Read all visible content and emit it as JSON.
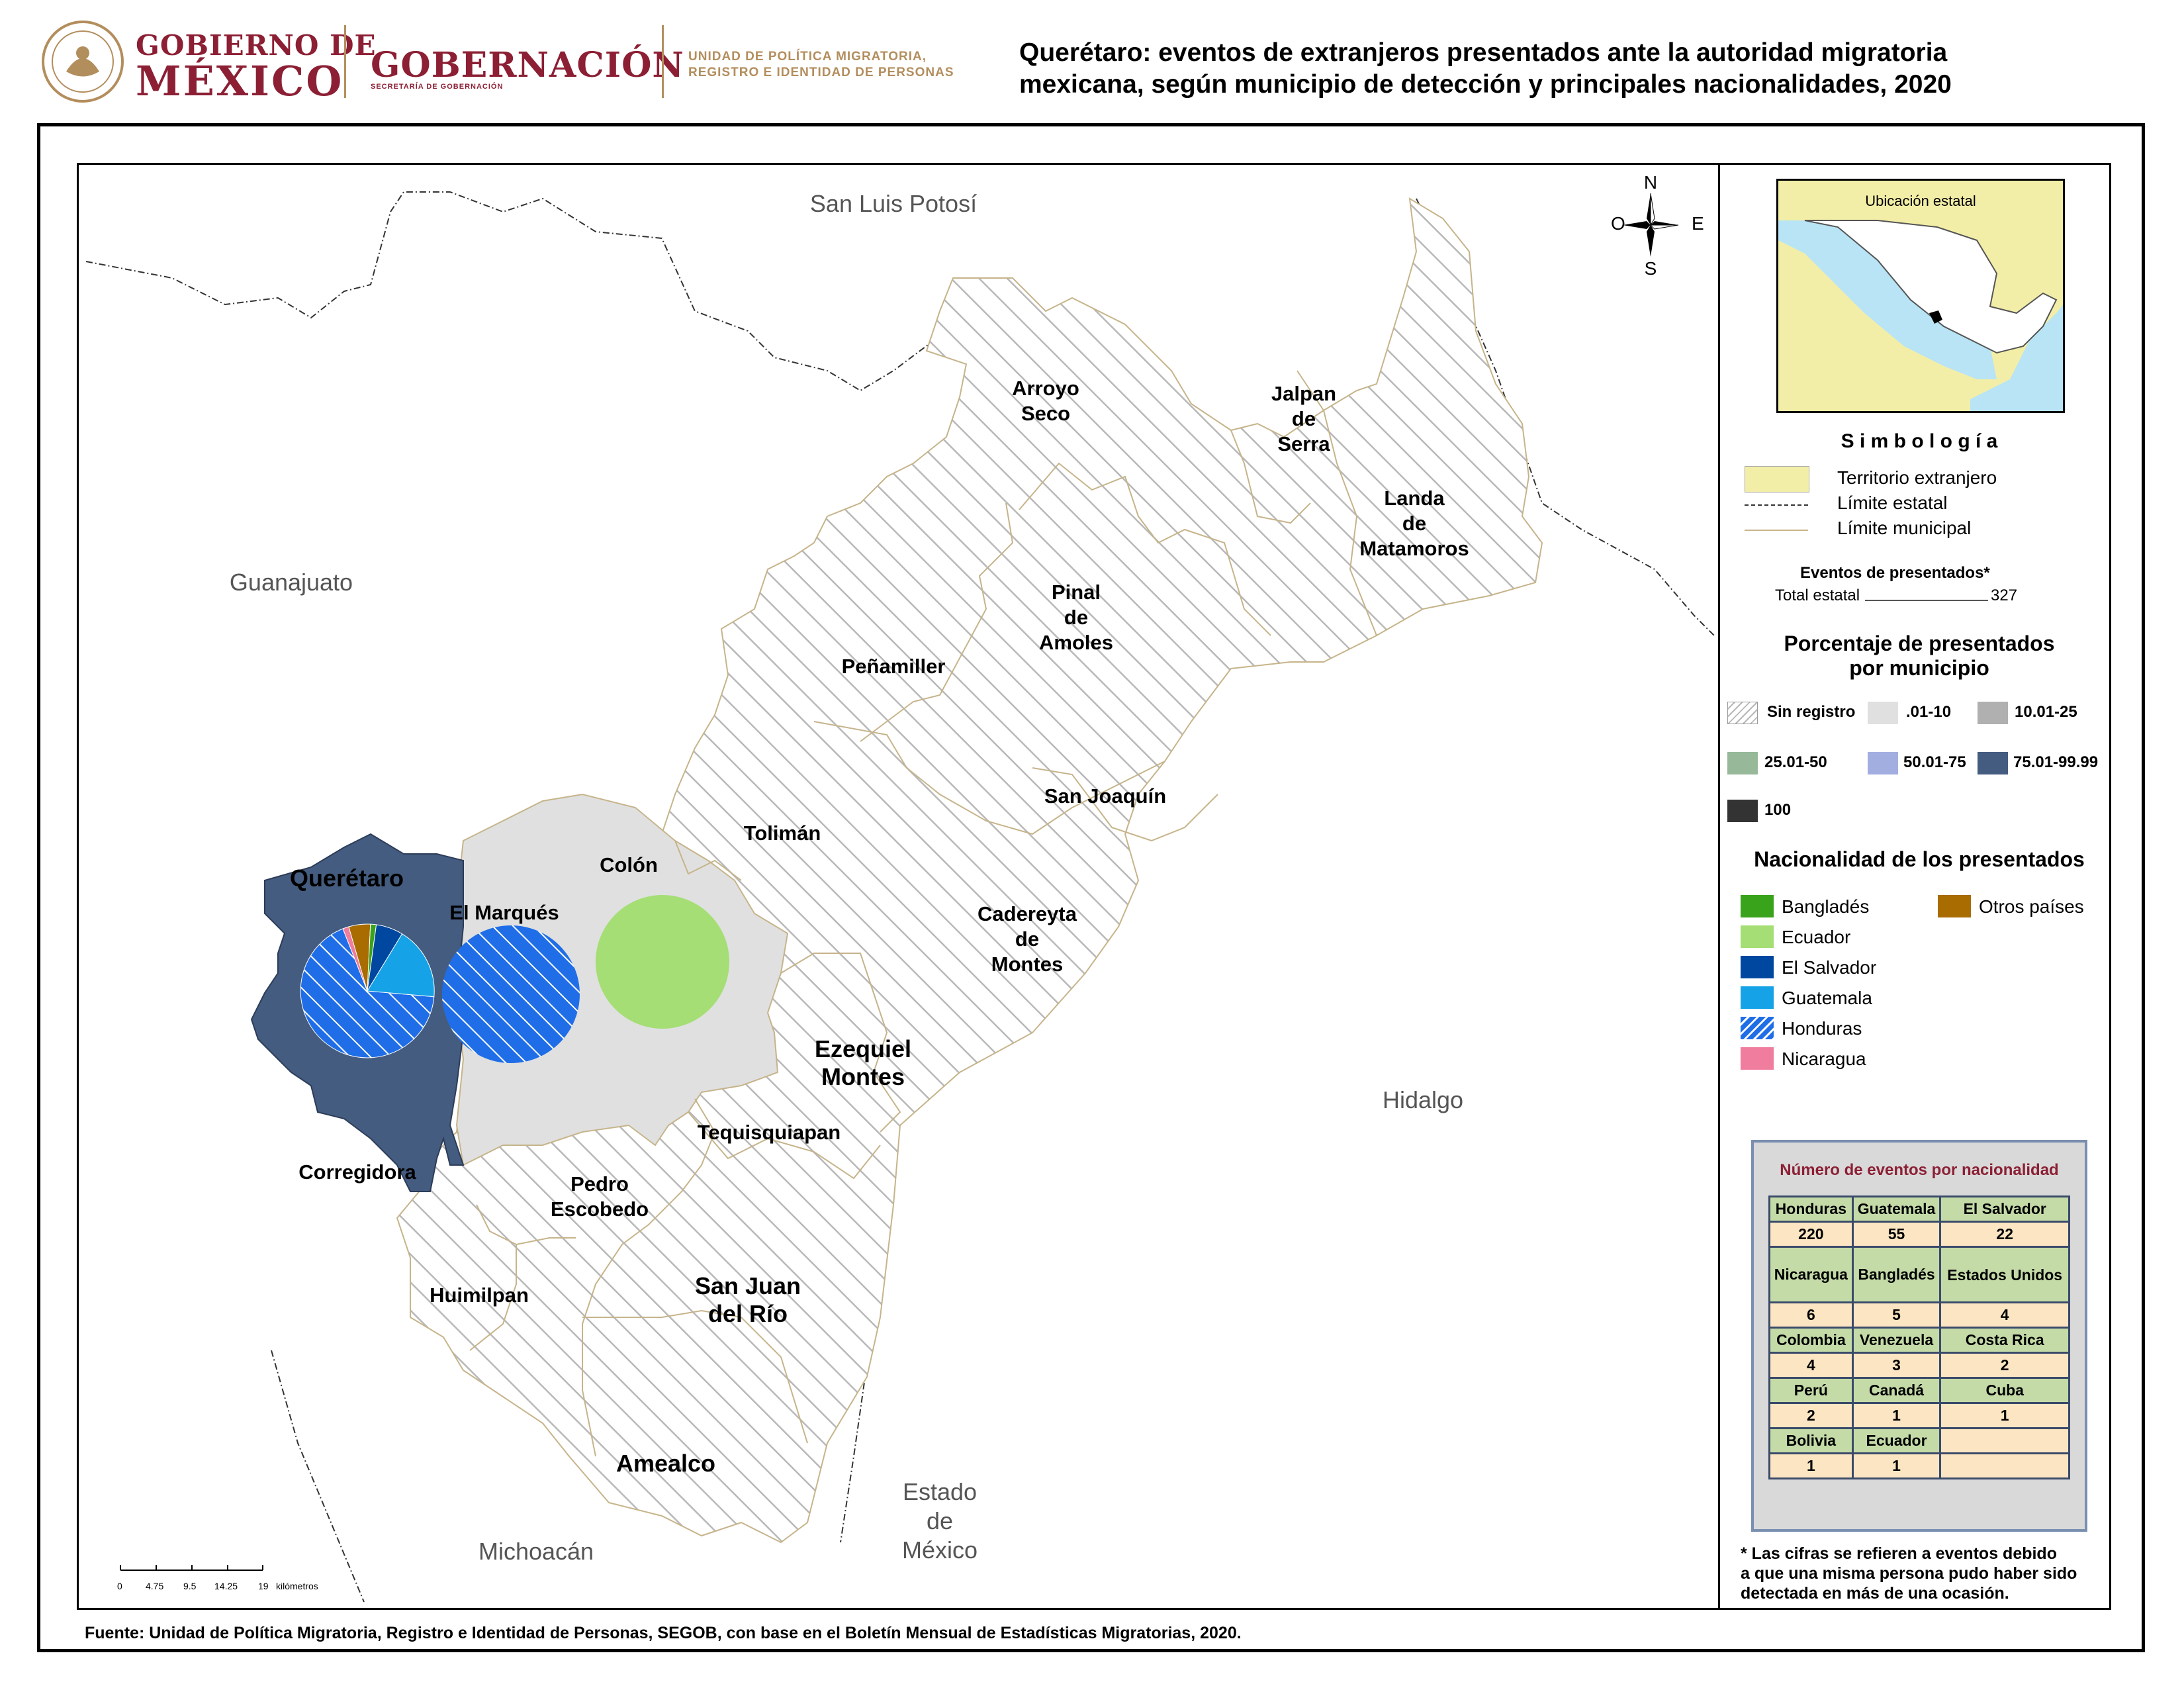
{
  "header": {
    "gobierno_line1": "GOBIERNO DE",
    "gobierno_line2": "MÉXICO",
    "gobernacion": "GOBERNACIÓN",
    "secretaria": "SECRETARÍA DE GOBERNACIÓN",
    "unidad_line1": "UNIDAD DE POLÍTICA MIGRATORIA,",
    "unidad_line2": "REGISTRO E IDENTIDAD DE PERSONAS",
    "title_line1": "Querétaro: eventos de extranjeros presentados ante la autoridad migratoria",
    "title_line2": "mexicana, según municipio de detección y principales nacionalidades, 2020"
  },
  "map": {
    "states": {
      "san_luis_potosi": "San Luis Potosí",
      "guanajuato": "Guanajuato",
      "hidalgo": "Hidalgo",
      "michoacan": "Michoacán",
      "estado_de_mexico_1": "Estado",
      "estado_de_mexico_2": "de",
      "estado_de_mexico_3": "México"
    },
    "municipalities": {
      "arroyo_seco_1": "Arroyo",
      "arroyo_seco_2": "Seco",
      "jalpan_1": "Jalpan",
      "jalpan_2": "de",
      "jalpan_3": "Serra",
      "landa_1": "Landa",
      "landa_2": "de",
      "landa_3": "Matamoros",
      "pinal_1": "Pinal",
      "pinal_2": "de",
      "pinal_3": "Amoles",
      "penamiller": "Peñamiller",
      "san_joaquin": "San Joaquín",
      "toliman": "Tolimán",
      "colon": "Colón",
      "queretaro": "Querétaro",
      "el_marques": "El Marqués",
      "cadereyta_1": "Cadereyta",
      "cadereyta_2": "de",
      "cadereyta_3": "Montes",
      "ezequiel_1": "Ezequiel",
      "ezequiel_2": "Montes",
      "tequisquiapan": "Tequisquiapan",
      "corregidora": "Corregidora",
      "pedro_1": "Pedro",
      "pedro_2": "Escobedo",
      "huimilpan": "Huimilpan",
      "san_juan_1": "San Juan",
      "san_juan_2": "del Río",
      "amealco": "Amealco"
    },
    "compass": {
      "n": "N",
      "s": "S",
      "e": "E",
      "o": "O"
    },
    "scale": {
      "ticks": [
        "0",
        "4.75",
        "9.5",
        "14.25",
        "19"
      ],
      "unit": "kilómetros"
    }
  },
  "legend": {
    "inset_title": "Ubicación estatal",
    "simbologia": "S i m b o l o g í a",
    "territorio": "Territorio extranjero",
    "limite_estatal": "Límite estatal",
    "limite_municipal": "Límite municipal",
    "eventos_title": "Eventos de presentados*",
    "total_label": "Total estatal",
    "total_value": "327",
    "porcentaje_1": "Porcentaje de presentados",
    "porcentaje_2": "por municipio",
    "classes": [
      "Sin registro",
      ".01-10",
      "10.01-25",
      "25.01-50",
      "50.01-75",
      "75.01-99.99",
      "100"
    ],
    "class_colors": [
      "#ffffff",
      "#e0e0e0",
      "#b0b0b0",
      "#97b99a",
      "#a3aee0",
      "#445c80",
      "#333333"
    ],
    "nacionalidad_title": "Nacionalidad de los presentados",
    "nationalities": [
      "Bangladés",
      "Ecuador",
      "El Salvador",
      "Guatemala",
      "Honduras",
      "Nicaragua",
      "Otros países"
    ],
    "nationality_colors": [
      "#3aa31c",
      "#a4de74",
      "#0047a0",
      "#15a2e6",
      "#1f6ee8",
      "#f07c9e",
      "#a86c00"
    ]
  },
  "table": {
    "title": "Número de eventos por nacionalidad",
    "rows": [
      [
        "Honduras",
        "Guatemala",
        "El Salvador"
      ],
      [
        "220",
        "55",
        "22"
      ],
      [
        "Nicaragua",
        "Bangladés",
        "Estados Unidos"
      ],
      [
        "6",
        "5",
        "4"
      ],
      [
        "Colombia",
        "Venezuela",
        "Costa Rica"
      ],
      [
        "4",
        "3",
        "2"
      ],
      [
        "Perú",
        "Canadá",
        "Cuba"
      ],
      [
        "2",
        "1",
        "1"
      ],
      [
        "Bolivia",
        "Ecuador",
        ""
      ],
      [
        "1",
        "1",
        ""
      ]
    ]
  },
  "footnote": {
    "line1": "* Las cifras se refieren a eventos debido",
    "line2": "a que una misma persona pudo haber sido",
    "line3": "detectada en más de una ocasión."
  },
  "source": "Fuente: Unidad de Política Migratoria, Registro e Identidad de Personas, SEGOB, con base en el Boletín Mensual de Estadísticas Migratorias, 2020."
}
